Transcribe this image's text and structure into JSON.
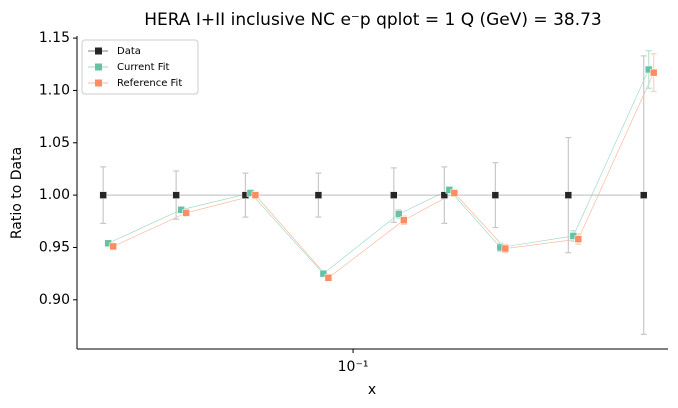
{
  "chart_data": {
    "type": "line",
    "title": "HERA I+II inclusive NC e⁻p qplot = 1 Q (GeV) = 38.73",
    "x_label": "x",
    "y_label": "Ratio to Data",
    "x": [
      0.02,
      0.032,
      0.05,
      0.08,
      0.13,
      0.18,
      0.25,
      0.4,
      0.65
    ],
    "xlim": [
      0.0169,
      0.76
    ],
    "xscale": "log",
    "xticks": [
      {
        "value": 0.1,
        "label": "10⁻¹"
      }
    ],
    "ylim": [
      0.853,
      1.152
    ],
    "yticks": [
      {
        "value": 0.9,
        "label": "0.90"
      },
      0.95,
      {
        "value": 1.0,
        "label": "1.00"
      },
      1.05,
      {
        "value": 1.1,
        "label": "1.10"
      },
      1.15
    ],
    "legend": "upper left",
    "series": [
      {
        "name": "Data",
        "color": "#262626",
        "error_color": "#c8c8c8",
        "values": [
          1.0,
          1.0,
          1.0,
          1.0,
          1.0,
          1.0,
          1.0,
          1.0,
          1.0
        ],
        "errors": [
          0.027,
          0.023,
          0.021,
          0.021,
          0.026,
          0.027,
          0.031,
          0.055,
          0.133
        ]
      },
      {
        "name": "Current Fit",
        "color": "#66c2a5",
        "error_color": "#b9e3d5",
        "values": [
          0.954,
          0.986,
          1.002,
          0.925,
          0.982,
          1.005,
          0.95,
          0.961,
          1.12
        ],
        "errors": [
          0.003,
          0.003,
          0.003,
          0.003,
          0.004,
          0.003,
          0.004,
          0.005,
          0.018
        ]
      },
      {
        "name": "Reference Fit",
        "color": "#fc8d62",
        "error_color": "#fdd0bd",
        "values": [
          0.951,
          0.983,
          1.0,
          0.921,
          0.976,
          1.002,
          0.949,
          0.958,
          1.117
        ],
        "errors": [
          0.003,
          0.003,
          0.003,
          0.003,
          0.004,
          0.003,
          0.004,
          0.005,
          0.018
        ]
      }
    ]
  }
}
